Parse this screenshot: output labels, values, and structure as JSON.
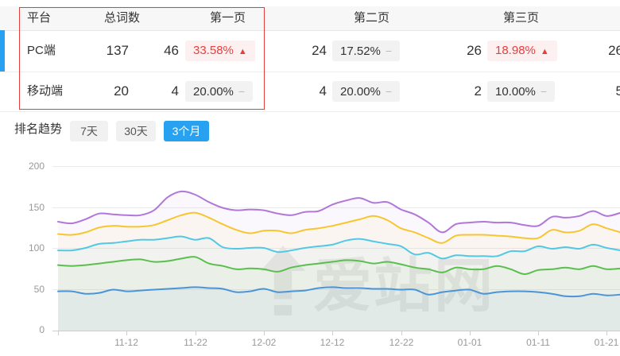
{
  "table": {
    "headers": [
      "平台",
      "总词数",
      "第一页",
      "第二页",
      "第三页"
    ],
    "rows": [
      {
        "platform": "PC端",
        "total": "137",
        "pages": [
          {
            "count": "46",
            "pct": "33.58%",
            "trend": "up"
          },
          {
            "count": "24",
            "pct": "17.52%",
            "trend": "flat"
          },
          {
            "count": "26",
            "pct": "18.98%",
            "trend": "up"
          },
          {
            "count": "26"
          }
        ]
      },
      {
        "platform": "移动端",
        "total": "20",
        "pages": [
          {
            "count": "4",
            "pct": "20.00%",
            "trend": "flat"
          },
          {
            "count": "4",
            "pct": "20.00%",
            "trend": "flat"
          },
          {
            "count": "2",
            "pct": "10.00%",
            "trend": "flat"
          },
          {
            "count": "5"
          }
        ]
      }
    ]
  },
  "icons": {
    "up_arrow": "▲",
    "flat_dash": "−",
    "watermark_logo": "aizhan-up-arrow"
  },
  "trend": {
    "label": "排名趋势",
    "tabs": [
      {
        "label": "7天",
        "active": false
      },
      {
        "label": "30天",
        "active": false
      },
      {
        "label": "3个月",
        "active": true
      }
    ]
  },
  "watermark": {
    "text": "爱站网"
  },
  "colors": {
    "accent_blue": "#29a1f1",
    "highlight_red": "#e93c3c",
    "badge_up_bg": "#fdf0f0",
    "badge_flat_bg": "#f2f2f2",
    "header_bg": "#f7f7f7",
    "axis_text": "#999999",
    "gridline": "#ebebeb"
  },
  "chart_data": {
    "type": "line",
    "title": "排名趋势 (3个月)",
    "x_tick_labels": [
      "11-12",
      "11-22",
      "12-02",
      "12-12",
      "12-22",
      "01-01",
      "01-11",
      "01-21"
    ],
    "point_interval_days": 2,
    "ylim": [
      0,
      200
    ],
    "yticks": [
      0,
      50,
      100,
      150,
      200
    ],
    "grid": true,
    "legend": "none",
    "series": [
      {
        "name": "purple",
        "color": "#b177d8",
        "values": [
          132,
          130,
          135,
          142,
          141,
          140,
          140,
          146,
          162,
          169,
          165,
          156,
          149,
          146,
          147,
          146,
          142,
          140,
          144,
          145,
          153,
          158,
          161,
          155,
          156,
          147,
          141,
          131,
          119,
          129,
          131,
          132,
          131,
          131,
          128,
          127,
          138,
          137,
          139,
          145,
          139,
          143
        ]
      },
      {
        "name": "yellow",
        "color": "#f7c62e",
        "values": [
          117,
          116,
          119,
          125,
          127,
          126,
          126,
          128,
          134,
          140,
          143,
          137,
          129,
          122,
          118,
          121,
          121,
          118,
          122,
          124,
          127,
          131,
          135,
          139,
          134,
          124,
          119,
          112,
          106,
          115,
          116,
          116,
          115,
          114,
          112,
          112,
          122,
          119,
          121,
          129,
          124,
          119
        ]
      },
      {
        "name": "cyan",
        "color": "#52c8e4",
        "values": [
          97,
          97,
          100,
          105,
          106,
          108,
          110,
          110,
          112,
          114,
          110,
          112,
          101,
          99,
          100,
          100,
          95,
          97,
          100,
          102,
          104,
          109,
          111,
          108,
          105,
          102,
          92,
          94,
          87,
          91,
          90,
          90,
          90,
          96,
          96,
          102,
          99,
          101,
          99,
          104,
          100,
          97
        ]
      },
      {
        "name": "green",
        "color": "#5abf4d",
        "values": [
          79,
          78,
          79,
          81,
          83,
          85,
          86,
          83,
          84,
          87,
          89,
          81,
          78,
          74,
          75,
          74,
          71,
          76,
          79,
          81,
          83,
          85,
          84,
          81,
          83,
          80,
          76,
          74,
          70,
          76,
          74,
          74,
          78,
          74,
          68,
          73,
          74,
          76,
          74,
          78,
          74,
          75
        ]
      },
      {
        "name": "blue",
        "color": "#4a94d9",
        "values": [
          47,
          47,
          44,
          45,
          49,
          47,
          48,
          49,
          50,
          51,
          52,
          51,
          50,
          46,
          47,
          50,
          46,
          47,
          48,
          51,
          52,
          51,
          51,
          50,
          50,
          49,
          49,
          43,
          46,
          48,
          49,
          44,
          46,
          47,
          47,
          46,
          44,
          41,
          41,
          44,
          42,
          43
        ]
      }
    ]
  }
}
